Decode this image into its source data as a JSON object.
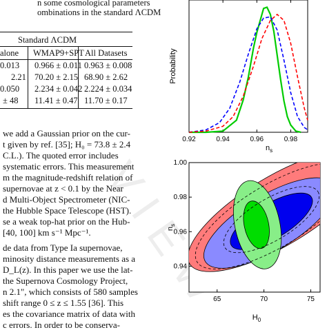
{
  "caption": {
    "line1": "n some cosmological parameters",
    "line2": "ombinations in the standard ΛCDM"
  },
  "table": {
    "group_header": "Standard ΛCDM",
    "columns": [
      "alone",
      "WMAP9+SPT",
      "All Datasets"
    ],
    "rows": [
      [
        "0.013",
        "0.966 ± 0.011",
        "0.963 ± 0.008"
      ],
      [
        "2.21",
        "70.20 ± 2.15",
        "68.90 ± 2.62"
      ],
      [
        "0.050",
        "2.234 ± 0.042",
        "2.224 ± 0.034"
      ],
      [
        "± 48",
        "11.41 ± 0.47",
        "11.70 ± 0.17"
      ]
    ]
  },
  "body_lines": [
    "we add a Gaussian prior on the cur-",
    "t given by ref. [35]; H₀ = 73.8 ± 2.4",
    "C.L.).  The quoted error includes",
    "systematic errors.  This measurement",
    "m the magnitude-redshift relation of",
    "supernovae at z < 0.1 by the Near",
    "d Multi-Object Spectrometer (NIC-",
    "the Hubble Space Telescope (HST).",
    "se a weak top-hat prior on the Hub-",
    "[40, 100] km s⁻¹ Mpc⁻¹.",
    "de data from Type Ia supernovae,",
    "minosity distance measurements as a",
    "D_L(z). In this paper we use the lat-",
    "the Supernova Cosmology Project,",
    "n 2.1\", which consists of 580 samples",
    "shift range 0 ≤ z ≤ 1.55 [36]. This",
    "es the covariance matrix of data with",
    "c errors.  In order to be conserva-"
  ],
  "chart_data": [
    {
      "type": "line",
      "xlabel": "n_s",
      "ylabel": "Probability",
      "xlim": [
        0.92,
        0.99
      ],
      "ylim": [
        0,
        1.1
      ],
      "xticks": [
        "0.92",
        "0.94",
        "0.96",
        "0.98"
      ],
      "yticks": [],
      "series": [
        {
          "color": "#00cc00",
          "style": "solid",
          "x": [
            0.92,
            0.93,
            0.94,
            0.948,
            0.952,
            0.955,
            0.958,
            0.96,
            0.962,
            0.964,
            0.966,
            0.968,
            0.97,
            0.972,
            0.974,
            0.976,
            0.978,
            0.98,
            0.983,
            0.986
          ],
          "y": [
            0.0,
            0.0,
            0.01,
            0.1,
            0.27,
            0.46,
            0.7,
            0.83,
            0.93,
            1.03,
            1.04,
            0.98,
            0.84,
            0.64,
            0.44,
            0.26,
            0.13,
            0.06,
            0.01,
            0.0
          ]
        },
        {
          "color": "#0000ff",
          "style": "dashed",
          "x": [
            0.92,
            0.93,
            0.938,
            0.944,
            0.95,
            0.955,
            0.96,
            0.964,
            0.968,
            0.972,
            0.976,
            0.98,
            0.984,
            0.988,
            0.99
          ],
          "y": [
            0.0,
            0.02,
            0.08,
            0.2,
            0.42,
            0.65,
            0.86,
            0.95,
            0.96,
            0.85,
            0.6,
            0.33,
            0.13,
            0.04,
            0.02
          ]
        },
        {
          "color": "#ff0000",
          "style": "dashed",
          "x": [
            0.92,
            0.93,
            0.94,
            0.946,
            0.952,
            0.958,
            0.963,
            0.968,
            0.972,
            0.976,
            0.98,
            0.984,
            0.988,
            0.99
          ],
          "y": [
            0.0,
            0.01,
            0.05,
            0.13,
            0.3,
            0.55,
            0.78,
            0.93,
            0.98,
            0.93,
            0.74,
            0.46,
            0.2,
            0.1
          ]
        }
      ]
    },
    {
      "type": "contour",
      "xlabel": "H_0",
      "ylabel": "n_s",
      "xlim": [
        62,
        76
      ],
      "ylim": [
        0.925,
        1.0
      ],
      "xticks": [
        "65",
        "70",
        "75"
      ],
      "yticks": [
        "0.94",
        "0.96",
        "0.98",
        "1.00"
      ],
      "series": [
        {
          "color": "#ff7b7b",
          "level": "95%"
        },
        {
          "color": "#8a8aff",
          "level": "95%"
        },
        {
          "color": "#0000ee",
          "level": "68%"
        },
        {
          "color": "#88ee88",
          "level": "95%"
        },
        {
          "color": "#00dd00",
          "level": "68%"
        }
      ]
    }
  ],
  "watermark": "V I E W"
}
